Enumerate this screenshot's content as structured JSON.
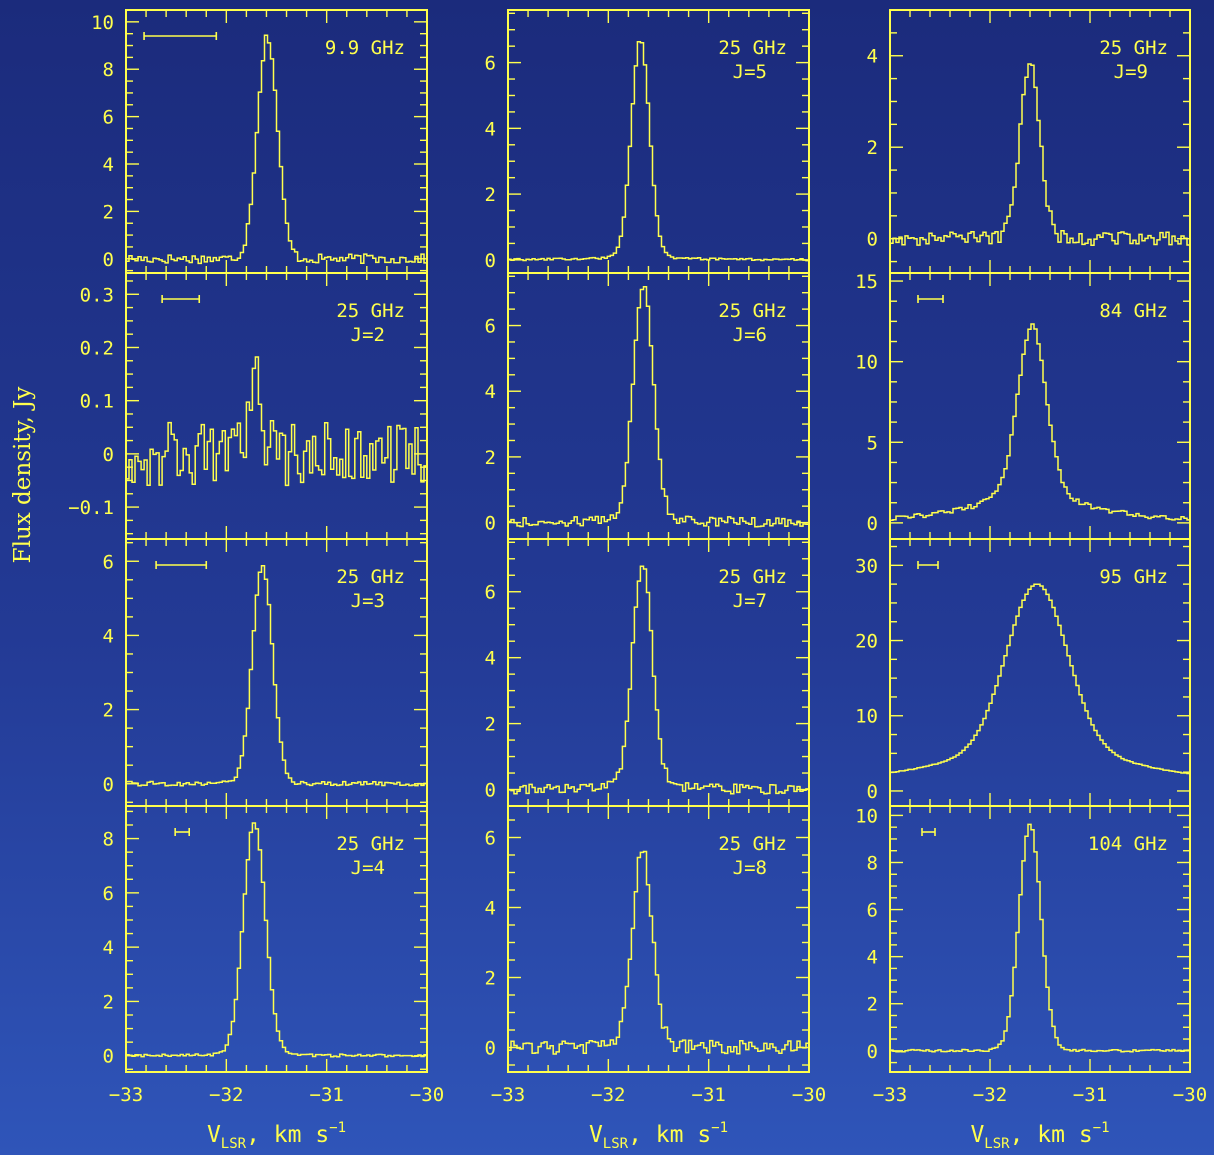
{
  "figure": {
    "y_axis_label": "Flux density, Jy",
    "x_axis_label_main": "V",
    "x_axis_label_sub": "LSR",
    "x_axis_label_tail": ", km s",
    "x_axis_label_exp": "−1",
    "x_ticks": [
      "−33",
      "−32",
      "−31",
      "−30"
    ],
    "colors": {
      "line": "#ffff4d",
      "background_top": "#1b2b7c",
      "background_bottom": "#2f55b9"
    }
  },
  "chart_data": [
    {
      "type": "line",
      "col": 0,
      "row": 0,
      "label1": "9.9 GHz",
      "label2": "",
      "xlim": [
        -33,
        -30
      ],
      "ylim": [
        -0.6,
        10.5
      ],
      "yticks": [
        0,
        2,
        4,
        6,
        8,
        10
      ],
      "ytick_labels": [
        "0",
        "2",
        "4",
        "6",
        "8",
        "10"
      ],
      "peak": 9.4,
      "center": -31.59,
      "width": 0.1,
      "wing": 0,
      "noise": 0.2,
      "bar": [
        -32.82,
        -32.1
      ]
    },
    {
      "type": "line",
      "col": 0,
      "row": 1,
      "label1": "25 GHz",
      "label2": "J=2",
      "xlim": [
        -33,
        -30
      ],
      "ylim": [
        -0.16,
        0.34
      ],
      "yticks": [
        -0.1,
        0,
        0.1,
        0.2,
        0.3
      ],
      "ytick_labels": [
        "−0.1",
        "0",
        "0.1",
        "0.2",
        "0.3"
      ],
      "peak": 0.13,
      "center": -31.7,
      "width": 0.06,
      "wing": 0,
      "noise": 0.06,
      "bar": [
        -32.64,
        -32.27
      ]
    },
    {
      "type": "line",
      "col": 0,
      "row": 2,
      "label1": "25 GHz",
      "label2": "J=3",
      "xlim": [
        -33,
        -30
      ],
      "ylim": [
        -0.6,
        6.6
      ],
      "yticks": [
        0,
        2,
        4,
        6
      ],
      "ytick_labels": [
        "0",
        "2",
        "4",
        "6"
      ],
      "peak": 5.9,
      "center": -31.64,
      "width": 0.1,
      "wing": 0.02,
      "noise": 0.06,
      "bar": [
        -32.7,
        -32.2
      ]
    },
    {
      "type": "line",
      "col": 0,
      "row": 3,
      "label1": "25 GHz",
      "label2": "J=4",
      "xlim": [
        -33,
        -30
      ],
      "ylim": [
        -0.6,
        9.2
      ],
      "yticks": [
        0,
        2,
        4,
        6,
        8
      ],
      "ytick_labels": [
        "0",
        "2",
        "4",
        "6",
        "8"
      ],
      "peak": 8.6,
      "center": -31.72,
      "width": 0.11,
      "wing": 0.05,
      "noise": 0.05,
      "bar": [
        -32.51,
        -32.37
      ]
    },
    {
      "type": "line",
      "col": 1,
      "row": 0,
      "label1": "25 GHz",
      "label2": "J=5",
      "xlim": [
        -33,
        -30
      ],
      "ylim": [
        -0.4,
        7.6
      ],
      "yticks": [
        0,
        2,
        4,
        6
      ],
      "ytick_labels": [
        "0",
        "2",
        "4",
        "6"
      ],
      "peak": 6.7,
      "center": -31.68,
      "width": 0.09,
      "wing": 0.12,
      "noise": 0.03,
      "bar": null
    },
    {
      "type": "line",
      "col": 1,
      "row": 1,
      "label1": "25 GHz",
      "label2": "J=6",
      "xlim": [
        -33,
        -30
      ],
      "ylim": [
        -0.5,
        7.6
      ],
      "yticks": [
        0,
        2,
        4,
        6
      ],
      "ytick_labels": [
        "0",
        "2",
        "4",
        "6"
      ],
      "peak": 7.2,
      "center": -31.65,
      "width": 0.1,
      "wing": 0.15,
      "noise": 0.15,
      "bar": null
    },
    {
      "type": "line",
      "col": 1,
      "row": 2,
      "label1": "25 GHz",
      "label2": "J=7",
      "xlim": [
        -33,
        -30
      ],
      "ylim": [
        -0.5,
        7.6
      ],
      "yticks": [
        0,
        2,
        4,
        6
      ],
      "ytick_labels": [
        "0",
        "2",
        "4",
        "6"
      ],
      "peak": 6.8,
      "center": -31.66,
      "width": 0.1,
      "wing": 0.12,
      "noise": 0.15,
      "bar": null
    },
    {
      "type": "line",
      "col": 1,
      "row": 3,
      "label1": "25 GHz",
      "label2": "J=8",
      "xlim": [
        -33,
        -30
      ],
      "ylim": [
        -0.7,
        6.9
      ],
      "yticks": [
        0,
        2,
        4,
        6
      ],
      "ytick_labels": [
        "0",
        "2",
        "4",
        "6"
      ],
      "peak": 5.6,
      "center": -31.66,
      "width": 0.1,
      "wing": 0.05,
      "noise": 0.2,
      "bar": null
    },
    {
      "type": "line",
      "col": 2,
      "row": 0,
      "label1": "25 GHz",
      "label2": "J=9",
      "xlim": [
        -33,
        -30
      ],
      "ylim": [
        -0.75,
        5.0
      ],
      "yticks": [
        0,
        2,
        4
      ],
      "ytick_labels": [
        "0",
        "2",
        "4"
      ],
      "peak": 3.9,
      "center": -31.6,
      "width": 0.1,
      "wing": 0.02,
      "noise": 0.15,
      "bar": null
    },
    {
      "type": "line",
      "col": 2,
      "row": 1,
      "label1": "84 GHz",
      "label2": "",
      "xlim": [
        -33,
        -30
      ],
      "ylim": [
        -1,
        15.5
      ],
      "yticks": [
        0,
        5,
        10,
        15
      ],
      "ytick_labels": [
        "0",
        "5",
        "10",
        "15"
      ],
      "peak": 12.2,
      "center": -31.58,
      "width": 0.14,
      "wing": 2.2,
      "noise": 0.15,
      "bar": [
        -32.72,
        -32.47
      ]
    },
    {
      "type": "line",
      "col": 2,
      "row": 2,
      "label1": "95 GHz",
      "label2": "",
      "xlim": [
        -33,
        -30
      ],
      "ylim": [
        -2,
        33.5
      ],
      "yticks": [
        0,
        10,
        20,
        30
      ],
      "ytick_labels": [
        "0",
        "10",
        "20",
        "30"
      ],
      "peak": 27.5,
      "center": -31.53,
      "width": 0.3,
      "wing": 6,
      "noise": 0.05,
      "bar": [
        -32.72,
        -32.52
      ]
    },
    {
      "type": "line",
      "col": 2,
      "row": 3,
      "label1": "104 GHz",
      "label2": "",
      "xlim": [
        -33,
        -30
      ],
      "ylim": [
        -0.9,
        10.4
      ],
      "yticks": [
        0,
        2,
        4,
        6,
        8,
        10
      ],
      "ytick_labels": [
        "0",
        "2",
        "4",
        "6",
        "8",
        "10"
      ],
      "peak": 9.6,
      "center": -31.6,
      "width": 0.11,
      "wing": 0.05,
      "noise": 0.05,
      "bar": [
        -32.68,
        -32.55
      ]
    }
  ]
}
